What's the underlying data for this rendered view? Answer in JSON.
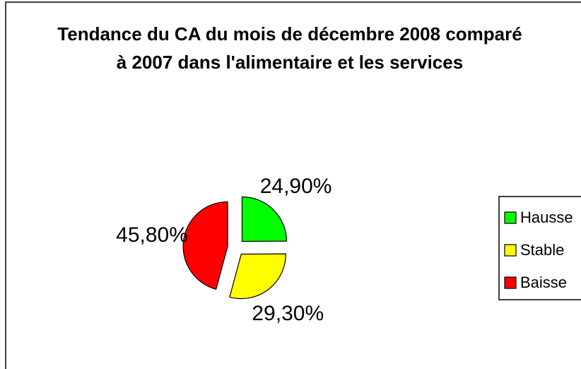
{
  "chart_data": {
    "type": "pie",
    "title": "Tendance du CA du mois de décembre 2008 comparé à 2007 dans l'alimentaire et les services",
    "categories": [
      "Hausse",
      "Stable",
      "Baisse"
    ],
    "values": [
      24.9,
      29.3,
      45.8
    ],
    "value_labels": [
      "24,90%",
      "29,30%",
      "45,80%"
    ],
    "colors": [
      "#00ff00",
      "#ffff00",
      "#ff0000"
    ],
    "legend": "right"
  }
}
